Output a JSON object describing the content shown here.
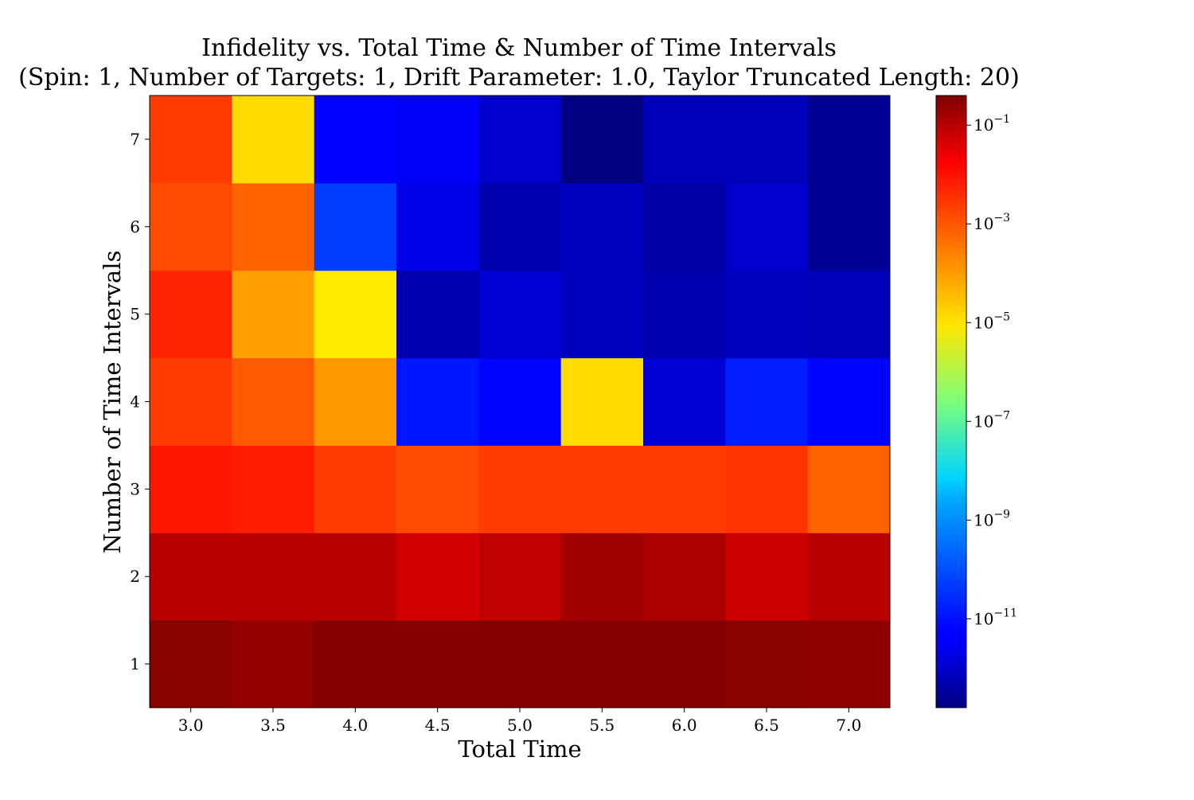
{
  "chart_data": {
    "type": "heatmap",
    "title": "Infidelity vs. Total Time & Number of Time Intervals",
    "subtitle": "(Spin: 1, Number of Targets: 1, Drift Parameter: 1.0, Taylor Truncated Length: 20)",
    "xlabel": "Total Time",
    "ylabel": "Number of Time Intervals",
    "x": [
      "3.0",
      "3.5",
      "4.0",
      "4.5",
      "5.0",
      "5.5",
      "6.0",
      "6.5",
      "7.0"
    ],
    "y": [
      "1",
      "2",
      "3",
      "4",
      "5",
      "6",
      "7"
    ],
    "colorscale": "jet",
    "color_scale_type": "log",
    "color_range_log10": [
      -12.8,
      -0.4
    ],
    "colorbar_ticks": [
      {
        "base": "10",
        "exp": "−1",
        "log10": -1
      },
      {
        "base": "10",
        "exp": "−3",
        "log10": -3
      },
      {
        "base": "10",
        "exp": "−5",
        "log10": -5
      },
      {
        "base": "10",
        "exp": "−7",
        "log10": -7
      },
      {
        "base": "10",
        "exp": "−9",
        "log10": -9
      },
      {
        "base": "10",
        "exp": "−11",
        "log10": -11
      }
    ],
    "log10_values": [
      [
        -0.5,
        -0.6,
        -0.45,
        -0.45,
        -0.45,
        -0.45,
        -0.45,
        -0.5,
        -0.55
      ],
      [
        -1.0,
        -1.0,
        -1.0,
        -1.3,
        -1.1,
        -0.75,
        -0.85,
        -1.2,
        -1.0
      ],
      [
        -1.8,
        -1.9,
        -2.3,
        -2.5,
        -2.3,
        -2.3,
        -2.3,
        -2.2,
        -2.8
      ],
      [
        -2.3,
        -2.7,
        -3.5,
        -11.0,
        -11.2,
        -4.4,
        -11.9,
        -10.9,
        -11.2
      ],
      [
        -2.0,
        -3.6,
        -4.6,
        -12.3,
        -11.9,
        -12.1,
        -12.3,
        -12.1,
        -12.2
      ],
      [
        -2.5,
        -2.8,
        -10.5,
        -11.7,
        -12.3,
        -12.1,
        -12.4,
        -12.0,
        -12.6
      ],
      [
        -2.3,
        -4.4,
        -11.3,
        -11.5,
        -12.0,
        -12.8,
        -12.2,
        -12.2,
        -12.6
      ]
    ]
  }
}
